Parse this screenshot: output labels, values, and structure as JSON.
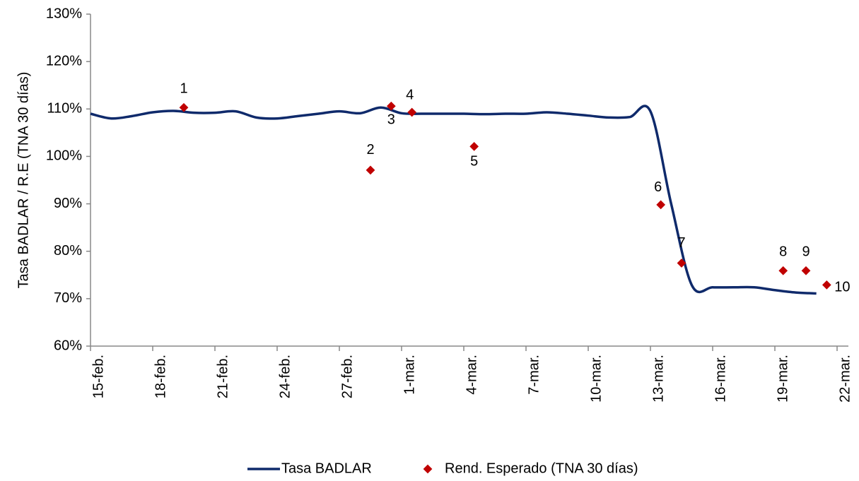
{
  "chart_data": {
    "type": "line",
    "y_label": "Tasa BADLAR / R.E (TNA 30 días)",
    "ylim": [
      60,
      130
    ],
    "yticks": [
      {
        "value": 60,
        "label": "60%"
      },
      {
        "value": 70,
        "label": "70%"
      },
      {
        "value": 80,
        "label": "80%"
      },
      {
        "value": 90,
        "label": "90%"
      },
      {
        "value": 100,
        "label": "100%"
      },
      {
        "value": 110,
        "label": "110%"
      },
      {
        "value": 120,
        "label": "120%"
      },
      {
        "value": 130,
        "label": "130%"
      }
    ],
    "xlim": [
      0,
      36
    ],
    "xticks": [
      {
        "value": 0,
        "label": "15-feb."
      },
      {
        "value": 3,
        "label": "18-feb."
      },
      {
        "value": 6,
        "label": "21-feb."
      },
      {
        "value": 9,
        "label": "24-feb."
      },
      {
        "value": 12,
        "label": "27-feb."
      },
      {
        "value": 15,
        "label": "1-mar."
      },
      {
        "value": 18,
        "label": "4-mar."
      },
      {
        "value": 21,
        "label": "7-mar."
      },
      {
        "value": 24,
        "label": "10-mar."
      },
      {
        "value": 27,
        "label": "13-mar."
      },
      {
        "value": 30,
        "label": "16-mar."
      },
      {
        "value": 33,
        "label": "19-mar."
      },
      {
        "value": 36,
        "label": "22-mar."
      }
    ],
    "legend": "bottom",
    "series": [
      {
        "name": "Tasa BADLAR",
        "type": "line",
        "color": "#0f2a6b",
        "x": [
          0,
          1,
          2,
          3,
          4,
          5,
          6,
          7,
          8,
          9,
          10,
          11,
          12,
          13,
          14,
          15,
          16,
          17,
          18,
          19,
          20,
          21,
          22,
          23,
          24,
          25,
          26,
          27,
          28,
          29,
          30,
          31,
          32,
          33,
          34,
          35
        ],
        "values": [
          109,
          108,
          108.5,
          109.3,
          109.6,
          109.2,
          109.2,
          109.5,
          108.2,
          108,
          108.5,
          109,
          109.5,
          109.1,
          110.3,
          109.1,
          109,
          109,
          109,
          108.9,
          109,
          109,
          109.3,
          109,
          108.6,
          108.2,
          108.3,
          109.5,
          90,
          72.8,
          72.4,
          72.4,
          72.4,
          71.8,
          71.3,
          71.1
        ]
      },
      {
        "name": "Rend. Esperado (TNA 30 días)",
        "type": "scatter",
        "color": "#c00000",
        "x": [
          4.5,
          13.5,
          14.5,
          15.5,
          18.5,
          27.5,
          28.5,
          33.4,
          34.5,
          35.5
        ],
        "values": [
          110.3,
          97.1,
          110.6,
          109.3,
          102.1,
          89.8,
          77.5,
          75.9,
          75.9,
          72.9
        ],
        "labels": [
          "1",
          "2",
          "3",
          "4",
          "5",
          "6",
          "7",
          "8",
          "9",
          "10"
        ]
      }
    ]
  }
}
